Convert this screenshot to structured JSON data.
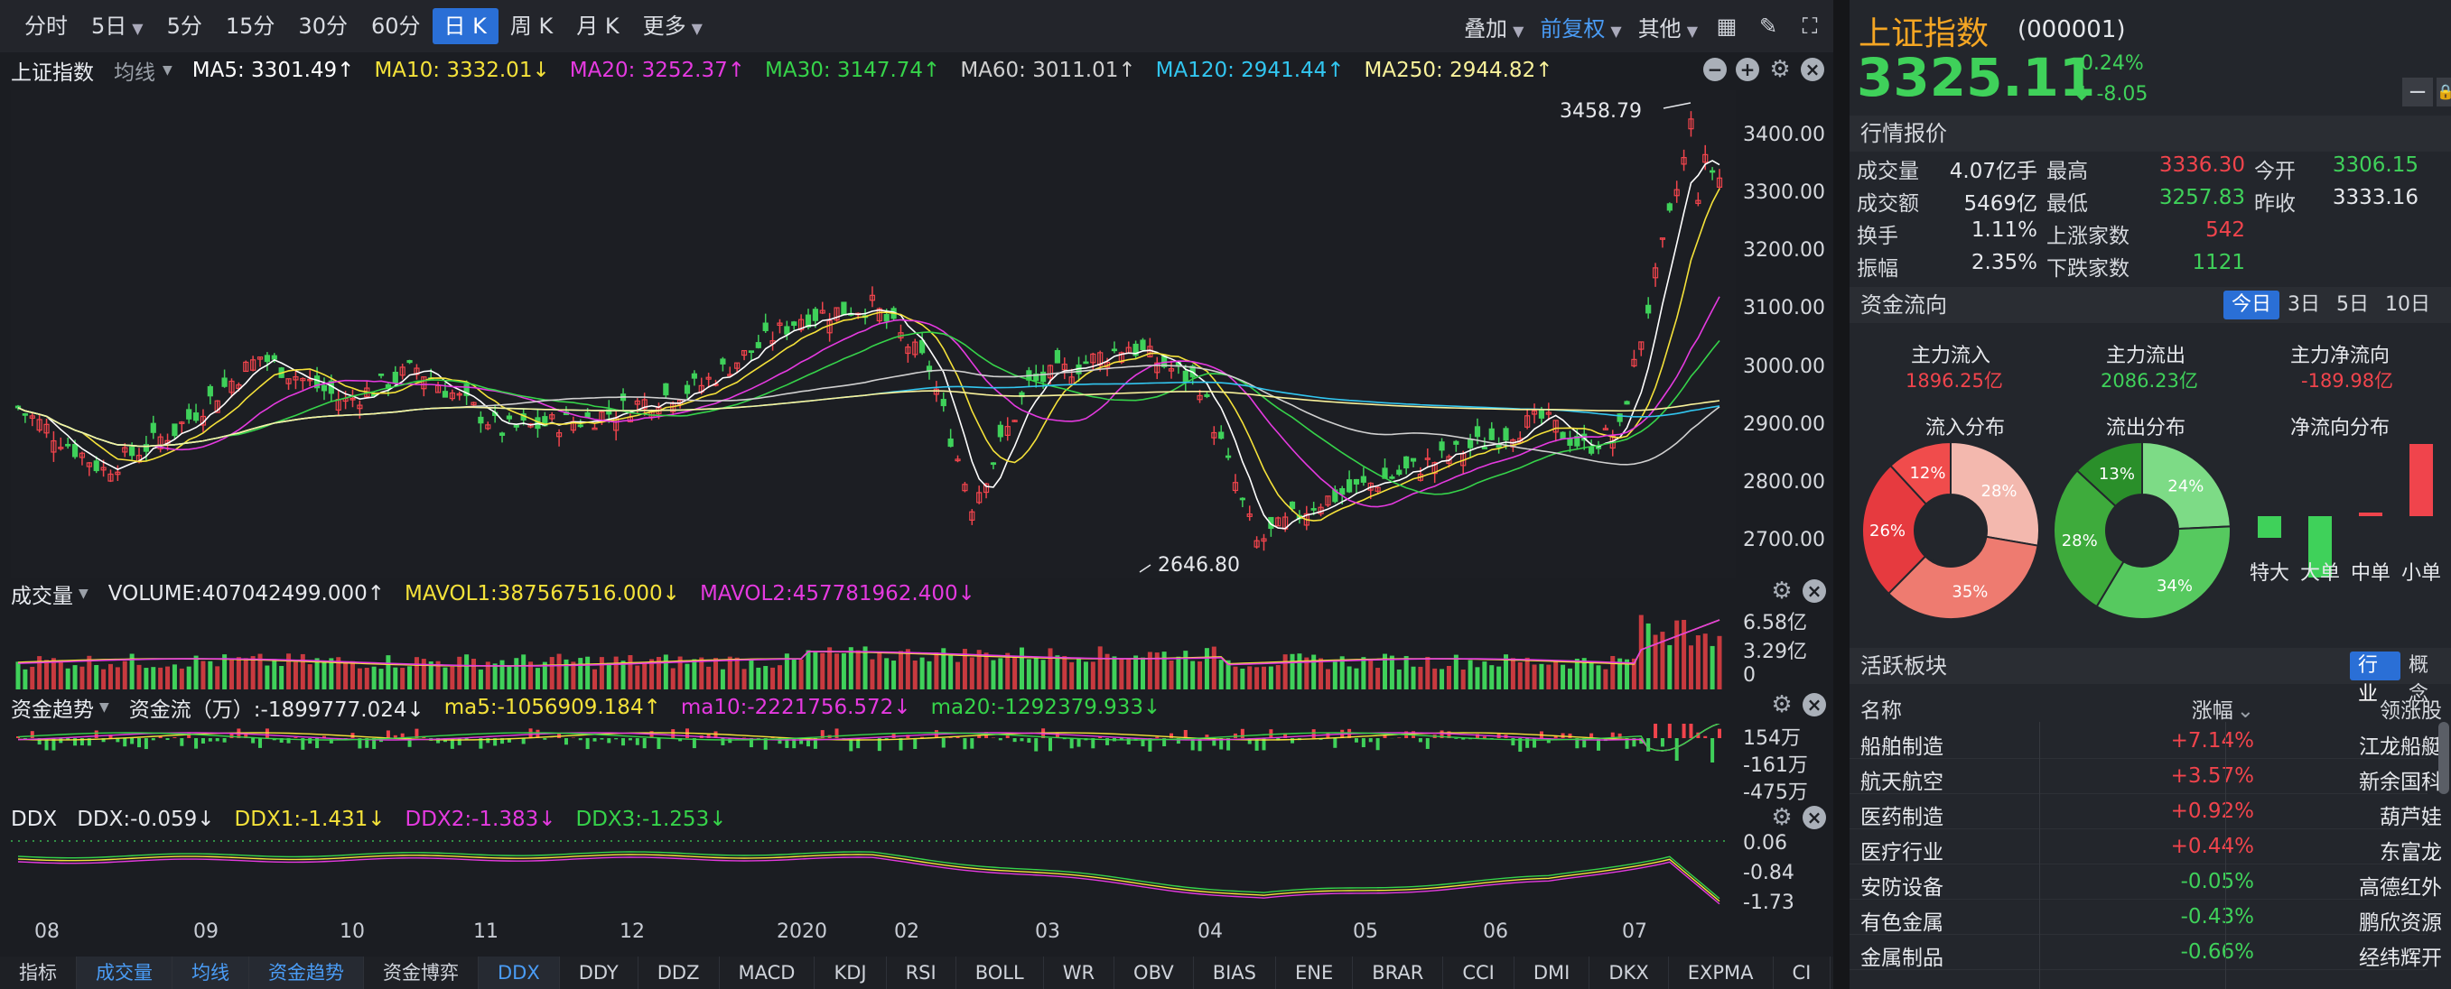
{
  "toolbar": {
    "periods": [
      "分时",
      "5日",
      "5分",
      "15分",
      "30分",
      "60分",
      "日 K",
      "周 K",
      "月 K",
      "更多"
    ],
    "active_period": "日 K",
    "overlay_label": "叠加",
    "adjust_label": "前复权",
    "other_label": "其他"
  },
  "main_panel": {
    "title": "上证指数",
    "ma_type": "均线",
    "ma": [
      {
        "label": "MA5: 3301.49",
        "arrow": "↑",
        "color": "#ffffff"
      },
      {
        "label": "MA10: 3332.01",
        "arrow": "↓",
        "color": "#f5e23a"
      },
      {
        "label": "MA20: 3252.37",
        "arrow": "↑",
        "color": "#e53ae0"
      },
      {
        "label": "MA30: 3147.74",
        "arrow": "↑",
        "color": "#36d34a"
      },
      {
        "label": "MA60: 3011.01",
        "arrow": "↑",
        "color": "#d0d0d0"
      },
      {
        "label": "MA120: 2941.44",
        "arrow": "↑",
        "color": "#32c6f0"
      },
      {
        "label": "MA250: 2944.82",
        "arrow": "↑",
        "color": "#f9f29b"
      }
    ],
    "y_ticks": [
      "3400.00",
      "3300.00",
      "3200.00",
      "3100.00",
      "3000.00",
      "2900.00",
      "2800.00",
      "2700.00"
    ],
    "high_label": "3458.79",
    "low_label": "2646.80"
  },
  "volume_panel": {
    "title": "成交量",
    "items": [
      {
        "label": "VOLUME:407042499.000↑",
        "color": "#e6e8ec"
      },
      {
        "label": "MAVOL1:387567516.000↓",
        "color": "#f5e23a"
      },
      {
        "label": "MAVOL2:457781962.400↓",
        "color": "#e53ae0"
      }
    ],
    "y_ticks": [
      "6.58亿",
      "3.29亿",
      "0"
    ]
  },
  "fund_panel": {
    "title": "资金趋势",
    "items": [
      {
        "label": "资金流（万）:-1899777.024↓",
        "color": "#e6e8ec"
      },
      {
        "label": "ma5:-1056909.184↑",
        "color": "#f5e23a"
      },
      {
        "label": "ma10:-2221756.572↓",
        "color": "#e53ae0"
      },
      {
        "label": "ma20:-1292379.933↓",
        "color": "#36d34a"
      }
    ],
    "y_ticks": [
      "154万",
      "-161万",
      "-475万"
    ]
  },
  "ddx_panel": {
    "title": "DDX",
    "items": [
      {
        "label": "DDX:-0.059↓",
        "color": "#e6e8ec"
      },
      {
        "label": "DDX1:-1.431↓",
        "color": "#f5e23a"
      },
      {
        "label": "DDX2:-1.383↓",
        "color": "#e53ae0"
      },
      {
        "label": "DDX3:-1.253↓",
        "color": "#36d34a"
      }
    ],
    "y_ticks": [
      "0.06",
      "-0.84",
      "-1.73"
    ]
  },
  "x_axis": [
    "08",
    "09",
    "10",
    "11",
    "12",
    "2020",
    "02",
    "03",
    "04",
    "05",
    "06",
    "07"
  ],
  "bottom_tabs": [
    "指标",
    "成交量",
    "均线",
    "资金趋势",
    "资金博弈",
    "DDX",
    "DDY",
    "DDZ",
    "MACD",
    "KDJ",
    "RSI",
    "BOLL",
    "WR",
    "OBV",
    "BIAS",
    "ENE",
    "BRAR",
    "CCI",
    "DMI",
    "DKX",
    "EXPMA",
    "CI"
  ],
  "quote": {
    "name": "上证指数",
    "code": "(000001)",
    "price": "3325.11",
    "pct": "-0.24%",
    "change": "-8.05"
  },
  "market_quote": {
    "title": "行情报价",
    "rows": [
      [
        {
          "k": "成交量",
          "v": "4.07亿手",
          "c": "white"
        },
        {
          "k": "最高",
          "v": "3336.30",
          "c": "red"
        },
        {
          "k": "今开",
          "v": "3306.15",
          "c": "green"
        }
      ],
      [
        {
          "k": "成交额",
          "v": "5469亿",
          "c": "white"
        },
        {
          "k": "最低",
          "v": "3257.83",
          "c": "green"
        },
        {
          "k": "昨收",
          "v": "3333.16",
          "c": "white"
        }
      ],
      [
        {
          "k": "换手",
          "v": "1.11%",
          "c": "white"
        },
        {
          "k": "上涨家数",
          "v": "542",
          "c": "red"
        }
      ],
      [
        {
          "k": "振幅",
          "v": "2.35%",
          "c": "white"
        },
        {
          "k": "下跌家数",
          "v": "1121",
          "c": "green"
        }
      ]
    ]
  },
  "fund_flow": {
    "title": "资金流向",
    "periods": [
      "今日",
      "3日",
      "5日",
      "10日"
    ],
    "active": "今日",
    "inflow_label": "主力流入",
    "inflow": "1896.25亿",
    "outflow_label": "主力流出",
    "outflow": "2086.23亿",
    "net_label": "主力净流向",
    "net": "-189.98亿",
    "pie_in_title": "流入分布",
    "pie_out_title": "流出分布",
    "net_title": "净流向分布",
    "pie_in": [
      {
        "pct": "28%",
        "color": "#f3b8ae"
      },
      {
        "pct": "35%",
        "color": "#ee7b70"
      },
      {
        "pct": "26%",
        "color": "#e63a3f"
      },
      {
        "pct": "12%",
        "color": "#f04c4c"
      }
    ],
    "pie_out": [
      {
        "pct": "24%",
        "color": "#7ddb86"
      },
      {
        "pct": "34%",
        "color": "#56c95f"
      },
      {
        "pct": "28%",
        "color": "#3eab3c"
      },
      {
        "pct": "13%",
        "color": "#2a8f2a"
      }
    ],
    "net_bars": [
      {
        "label": "特大",
        "value": -0.3
      },
      {
        "label": "大单",
        "value": -0.85
      },
      {
        "label": "中单",
        "value": 0.05
      },
      {
        "label": "小单",
        "value": 1.0
      }
    ]
  },
  "sectors": {
    "title": "活跃板块",
    "tabs": [
      "行业",
      "概念"
    ],
    "active": "行业",
    "headers": [
      "名称",
      "涨幅",
      "领涨股"
    ],
    "rows": [
      {
        "name": "船舶制造",
        "pct": "+7.14%",
        "lead": "江龙船艇"
      },
      {
        "name": "航天航空",
        "pct": "+3.57%",
        "lead": "新余国科"
      },
      {
        "name": "医药制造",
        "pct": "+0.92%",
        "lead": "葫芦娃"
      },
      {
        "name": "医疗行业",
        "pct": "+0.44%",
        "lead": "东富龙"
      },
      {
        "name": "安防设备",
        "pct": "-0.05%",
        "lead": "高德红外"
      },
      {
        "name": "有色金属",
        "pct": "-0.43%",
        "lead": "鹏欣资源"
      },
      {
        "name": "金属制品",
        "pct": "-0.66%",
        "lead": "经纬辉开"
      }
    ]
  },
  "colors": {
    "up": "#f0444c",
    "down": "#3fd15a",
    "accent": "#2a6fd6"
  }
}
